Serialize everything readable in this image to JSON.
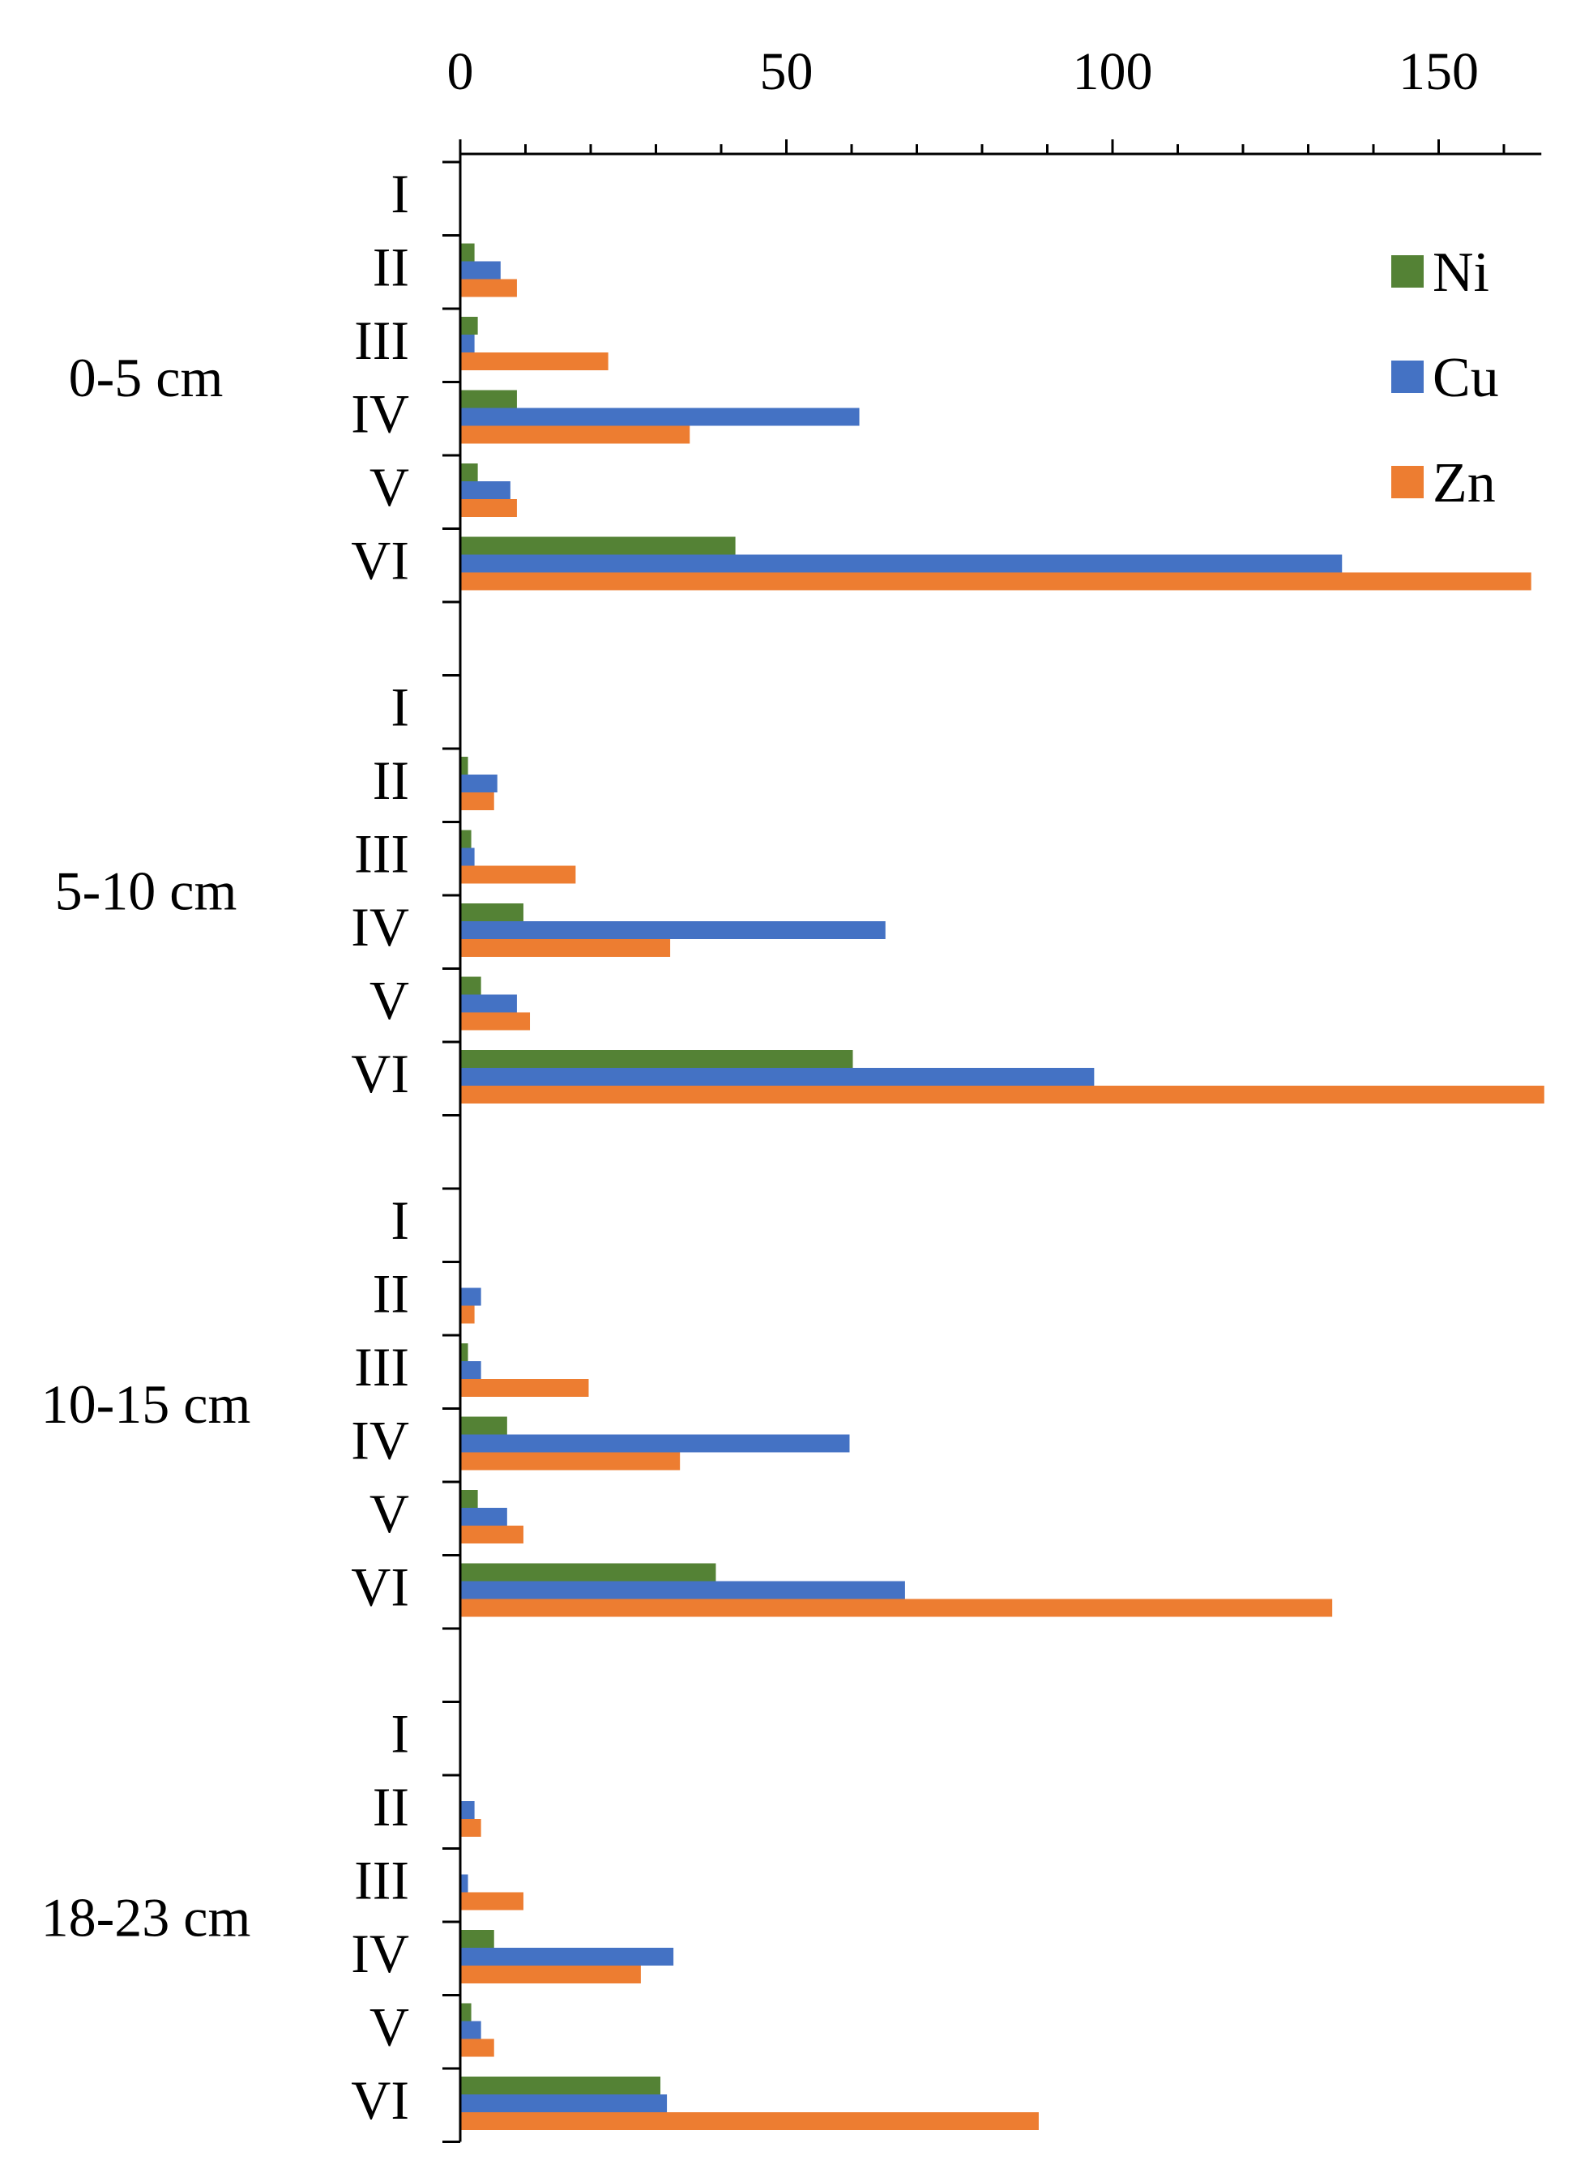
{
  "chart_data": {
    "type": "bar",
    "orientation": "horizontal",
    "title": "",
    "xlabel": "",
    "ylabel": "",
    "xlim": [
      0,
      165
    ],
    "x_ticks": [
      0,
      50,
      100,
      150
    ],
    "x_axis_position": "top",
    "grid": false,
    "legend_position": "top-right",
    "fractions": [
      "I",
      "II",
      "III",
      "IV",
      "V",
      "VI"
    ],
    "groups": [
      {
        "label": "0-5 cm",
        "series": [
          {
            "name": "Ni",
            "color": "#548235",
            "values": [
              0,
              2,
              2.5,
              8.5,
              2.5,
              42
            ]
          },
          {
            "name": "Cu",
            "color": "#4472C4",
            "values": [
              0,
              6,
              2,
              61,
              7.5,
              135
            ]
          },
          {
            "name": "Zn",
            "color": "#ED7D31",
            "values": [
              0,
              8.5,
              22.5,
              35,
              8.5,
              164
            ]
          }
        ]
      },
      {
        "label": "5-10 cm",
        "series": [
          {
            "name": "Ni",
            "color": "#548235",
            "values": [
              0,
              1,
              1.5,
              9.5,
              3,
              60
            ]
          },
          {
            "name": "Cu",
            "color": "#4472C4",
            "values": [
              0,
              5.5,
              2,
              65,
              8.5,
              97
            ]
          },
          {
            "name": "Zn",
            "color": "#ED7D31",
            "values": [
              0,
              5,
              17.5,
              32,
              10.5,
              166
            ]
          }
        ]
      },
      {
        "label": "10-15 cm",
        "series": [
          {
            "name": "Ni",
            "color": "#548235",
            "values": [
              0,
              0,
              1,
              7,
              2.5,
              39
            ]
          },
          {
            "name": "Cu",
            "color": "#4472C4",
            "values": [
              0,
              3,
              3,
              59.5,
              7,
              68
            ]
          },
          {
            "name": "Zn",
            "color": "#ED7D31",
            "values": [
              0,
              2,
              19.5,
              33.5,
              9.5,
              133.5
            ]
          }
        ]
      },
      {
        "label": "18-23 cm",
        "series": [
          {
            "name": "Ni",
            "color": "#548235",
            "values": [
              0,
              0,
              0,
              5,
              1.5,
              30.5
            ]
          },
          {
            "name": "Cu",
            "color": "#4472C4",
            "values": [
              0,
              2,
              1,
              32.5,
              3,
              31.5
            ]
          },
          {
            "name": "Zn",
            "color": "#ED7D31",
            "values": [
              0,
              3,
              9.5,
              27.5,
              5,
              88.5
            ]
          }
        ]
      }
    ],
    "legend": [
      {
        "name": "Ni",
        "color": "#548235"
      },
      {
        "name": "Cu",
        "color": "#4472C4"
      },
      {
        "name": "Zn",
        "color": "#ED7D31"
      }
    ]
  }
}
